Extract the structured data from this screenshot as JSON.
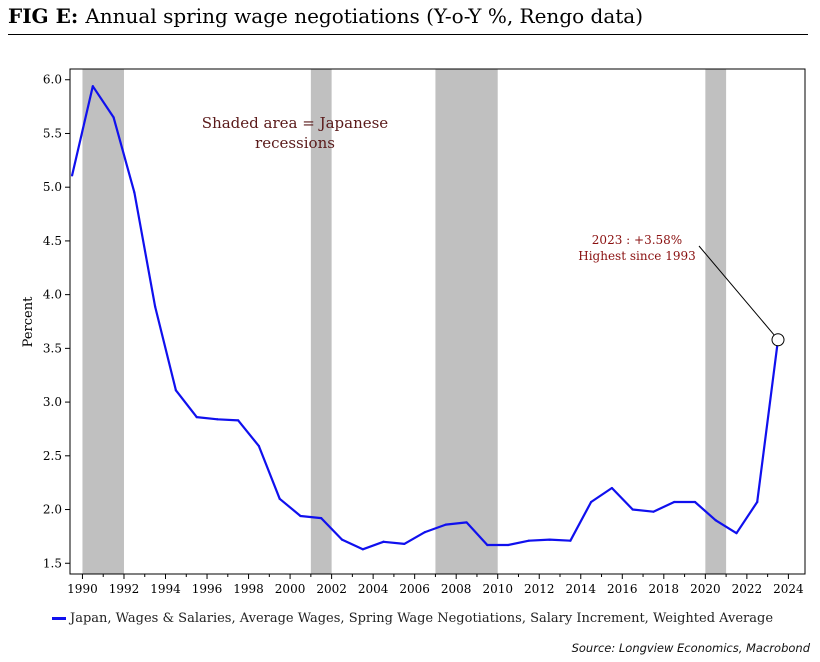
{
  "header": {
    "fig_label": "FIG E:",
    "title": "Annual spring wage negotiations (Y-o-Y %, Rengo data)"
  },
  "chart_data": {
    "type": "line",
    "title": "Annual spring wage negotiations (Y-o-Y %, Rengo data)",
    "xlabel": "",
    "ylabel": "Percent",
    "xlim": [
      1989.4,
      2024.8
    ],
    "ylim": [
      1.4,
      6.1
    ],
    "xticks": [
      1990,
      1992,
      1994,
      1996,
      1998,
      2000,
      2002,
      2004,
      2006,
      2008,
      2010,
      2012,
      2014,
      2016,
      2018,
      2020,
      2022,
      2024
    ],
    "yticks": [
      1.5,
      2.0,
      2.5,
      3.0,
      3.5,
      4.0,
      4.5,
      5.0,
      5.5,
      6.0
    ],
    "ytick_labels": [
      "1.5",
      "2.0",
      "2.5",
      "3.0",
      "3.5",
      "4.0",
      "4.5",
      "5.0",
      "5.5",
      "6.0"
    ],
    "recessions": [
      [
        1990.0,
        1992.0
      ],
      [
        2001.0,
        2002.0
      ],
      [
        2007.0,
        2010.0
      ],
      [
        2020.0,
        2021.0
      ]
    ],
    "series": [
      {
        "name": "Japan, Wages & Salaries, Average Wages, Spring Wage Negotiations, Salary Increment, Weighted Average",
        "color": "#1010ee",
        "x": [
          1989.5,
          1990.5,
          1991.5,
          1992.5,
          1993.5,
          1994.5,
          1995.5,
          1996.5,
          1997.5,
          1998.5,
          1999.5,
          2000.5,
          2001.5,
          2002.5,
          2003.5,
          2004.5,
          2005.5,
          2006.5,
          2007.5,
          2008.5,
          2009.5,
          2010.5,
          2011.5,
          2012.5,
          2013.5,
          2014.5,
          2015.5,
          2016.5,
          2017.5,
          2018.5,
          2019.5,
          2020.5,
          2021.5,
          2022.5,
          2023.5
        ],
        "values": [
          5.11,
          5.94,
          5.65,
          4.95,
          3.89,
          3.11,
          2.86,
          2.84,
          2.83,
          2.59,
          2.1,
          1.94,
          1.92,
          1.72,
          1.63,
          1.7,
          1.68,
          1.79,
          1.86,
          1.88,
          1.67,
          1.67,
          1.71,
          1.72,
          1.71,
          2.07,
          2.2,
          2.0,
          1.98,
          2.07,
          2.07,
          1.9,
          1.78,
          2.07,
          3.58
        ]
      }
    ],
    "annotations": {
      "recession_note": "Shaded area = Japanese recessions",
      "peak_label_line1": "2023 : +3.58%",
      "peak_label_line2": "Highest since 1993",
      "peak_point": {
        "x": 2023.5,
        "y": 3.58
      }
    },
    "legend": {
      "label": "Japan, Wages & Salaries, Average Wages, Spring Wage Negotiations, Salary Increment, Weighted Average",
      "placement": "bottom"
    }
  },
  "source": "Source: Longview Economics, Macrobond",
  "colors": {
    "line": "#1010ee",
    "recession": "#c0c0c0",
    "annotation": "#7a1010"
  }
}
